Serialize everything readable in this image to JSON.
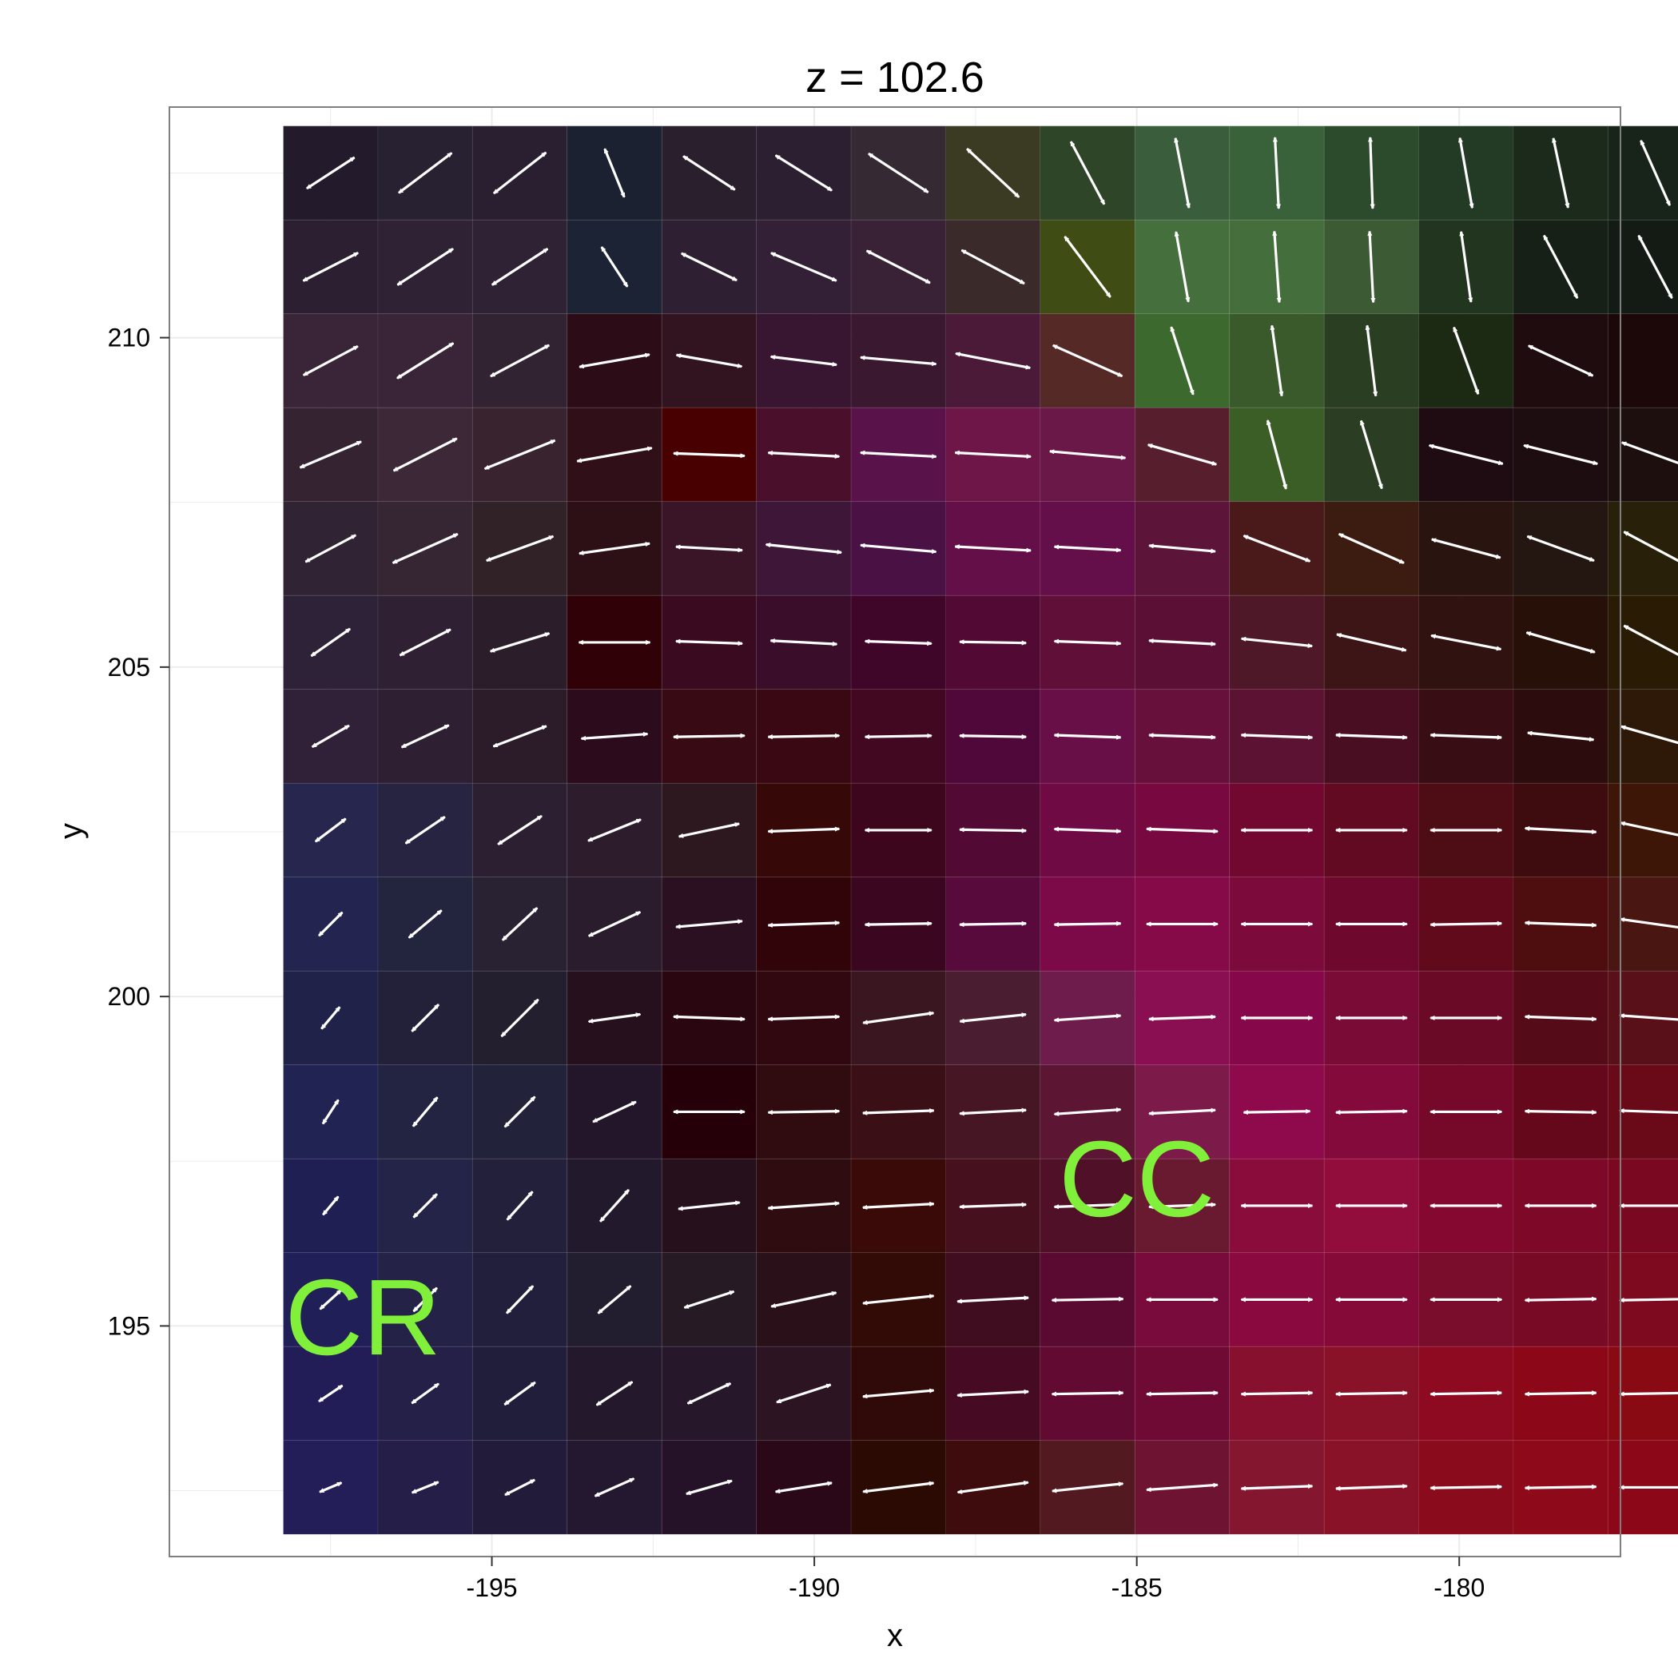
{
  "chart_data": {
    "type": "heatmap",
    "title": "z = 102.6",
    "xlabel": "x",
    "ylabel": "y",
    "xlim": [
      -200,
      -177.5
    ],
    "ylim": [
      191.5,
      213.5
    ],
    "x_ticks": [
      -195,
      -190,
      -185,
      -180
    ],
    "y_ticks": [
      195,
      200,
      205,
      210
    ],
    "grid": true,
    "x": [
      -197.5,
      -196.13,
      -194.77,
      -193.4,
      -192.03,
      -190.67,
      -189.3,
      -187.93,
      -186.57,
      -185.2,
      -183.83,
      -182.47,
      -181.1,
      -179.73
    ],
    "y": [
      212.5,
      211.13,
      209.77,
      208.4,
      207.03,
      205.67,
      204.3,
      202.93,
      201.57,
      200.2,
      198.83,
      197.47,
      196.1,
      194.73,
      193.37
    ],
    "x_edges_extra": [
      -178.36
    ],
    "colors": [
      [
        "#231b2c",
        "#282131",
        "#2a1f31",
        "#1b2130",
        "#2a1f2d",
        "#2d1f32",
        "#352a34",
        "#3b3a22",
        "#2e4528",
        "#3a5e3b",
        "#3a623a",
        "#2c4a2c",
        "#233a24",
        "#1b2a1b",
        "#182419"
      ],
      [
        "#2c1f31",
        "#2e2234",
        "#2f2235",
        "#1c2334",
        "#2f1f33",
        "#331f36",
        "#3a2236",
        "#3b2a2a",
        "#3f4c13",
        "#456f3d",
        "#456e3d",
        "#3c5a33",
        "#22361f",
        "#172016",
        "#141b14"
      ],
      [
        "#3a2538",
        "#3a2538",
        "#312332",
        "#2c0c16",
        "#321421",
        "#381530",
        "#3a1830",
        "#4a1a38",
        "#552a26",
        "#3c6a2e",
        "#3a5a2c",
        "#2a3e22",
        "#1c2a14",
        "#1e0c0e",
        "#1c0808"
      ],
      [
        "#362331",
        "#3d2838",
        "#38232e",
        "#300f19",
        "#480000",
        "#4a0f2a",
        "#5a124a",
        "#6e1648",
        "#6a1848",
        "#571f2d",
        "#3b5e27",
        "#2b3d22",
        "#1f0c13",
        "#1d0c10",
        "#1e0f0f"
      ],
      [
        "#302333",
        "#362533",
        "#302227",
        "#2d0f16",
        "#3a1427",
        "#3d1638",
        "#4a1244",
        "#640f48",
        "#640f4a",
        "#5c1438",
        "#4a1a1a",
        "#3c1c10",
        "#2a1410",
        "#241610",
        "#282008"
      ],
      [
        "#2e2238",
        "#2f2133",
        "#2c1d2a",
        "#300208",
        "#3a0a20",
        "#3a0d2a",
        "#40062a",
        "#520a34",
        "#600f38",
        "#5c0f34",
        "#4e1828",
        "#3e1516",
        "#301210",
        "#261008",
        "#2a1c04"
      ],
      [
        "#302038",
        "#2e1f32",
        "#2c1c2a",
        "#2c0c1c",
        "#380a14",
        "#3a0812",
        "#420822",
        "#50083a",
        "#680f48",
        "#68103c",
        "#5c1232",
        "#4a0e22",
        "#380e14",
        "#2c0c0c",
        "#2e1808"
      ],
      [
        "#26264e",
        "#262440",
        "#2c1f32",
        "#2c1c2c",
        "#2e1820",
        "#360808",
        "#3e061c",
        "#520a34",
        "#700a44",
        "#780840",
        "#720830",
        "#620a22",
        "#4e0c14",
        "#3e0c0e",
        "#3e1608"
      ],
      [
        "#232450",
        "#23243e",
        "#282232",
        "#2a1c2c",
        "#2a1020",
        "#300408",
        "#3a0620",
        "#580a3c",
        "#7c0a48",
        "#860a48",
        "#7c0a3a",
        "#6e082c",
        "#600a1c",
        "#4e0e10",
        "#4a1612"
      ],
      [
        "#21224a",
        "#23203a",
        "#231f2e",
        "#26101e",
        "#2a0610",
        "#320810",
        "#3a1620",
        "#4a1e30",
        "#6e1c4c",
        "#8a0e52",
        "#86084a",
        "#7a0a36",
        "#6a0a26",
        "#560c18",
        "#5a1018"
      ],
      [
        "#212452",
        "#232442",
        "#22233a",
        "#24162a",
        "#260008",
        "#300c10",
        "#3a1016",
        "#461624",
        "#5c1634",
        "#7c1a4a",
        "#8e0a4c",
        "#850a3c",
        "#76082a",
        "#66081c",
        "#6a0a18"
      ],
      [
        "#201f54",
        "#242448",
        "#22203a",
        "#22192c",
        "#26101c",
        "#2e0c10",
        "#3a0a08",
        "#46101e",
        "#501028",
        "#6a1a30",
        "#8a0c3a",
        "#920c3c",
        "#840830",
        "#7e0828",
        "#7a0820"
      ],
      [
        "#211f58",
        "#252248",
        "#221f3c",
        "#221e30",
        "#261a24",
        "#2a1018",
        "#320a06",
        "#400c20",
        "#5a0a30",
        "#780a3c",
        "#8a0a40",
        "#860a38",
        "#7a0c2c",
        "#780a26",
        "#7e0a20"
      ],
      [
        "#221d56",
        "#242048",
        "#211e3c",
        "#24192c",
        "#26172a",
        "#2c1422",
        "#300a08",
        "#460a22",
        "#620a32",
        "#6e0a34",
        "#86102e",
        "#8a1228",
        "#8e0a20",
        "#8c0818",
        "#8a0a14"
      ],
      [
        "#231d58",
        "#241e48",
        "#221c3a",
        "#241830",
        "#261228",
        "#2a0818",
        "#2c0a04",
        "#3e0c0c",
        "#521a20",
        "#6e1432",
        "#841630",
        "#8a1228",
        "#8a0c1c",
        "#8e0a1a",
        "#8c0818"
      ]
    ],
    "arrow_angles_deg": [
      [
        33,
        37,
        38,
        112,
        -33,
        -32,
        -33,
        -43,
        -62,
        -79,
        -87,
        -88,
        -80,
        -78,
        -66
      ],
      [
        27,
        33,
        33,
        -57,
        -26,
        -23,
        -27,
        -28,
        -53,
        -80,
        -86,
        -87,
        -82,
        -62,
        -62
      ],
      [
        28,
        32,
        28,
        10,
        -10,
        -7,
        -5,
        -11,
        -24,
        -72,
        -82,
        -83,
        -70,
        -25,
        0
      ],
      [
        23,
        27,
        22,
        10,
        -2,
        -3,
        -3,
        -3,
        -5,
        -16,
        -75,
        -73,
        -14,
        -14,
        -20
      ],
      [
        28,
        24,
        20,
        8,
        -3,
        -6,
        -5,
        -3,
        -3,
        -5,
        -21,
        -24,
        -15,
        -20,
        -28
      ],
      [
        35,
        27,
        17,
        0,
        -2,
        -3,
        -2,
        -1,
        -2,
        -3,
        -6,
        -13,
        -11,
        -16,
        -28
      ],
      [
        30,
        25,
        21,
        4,
        1,
        1,
        1,
        -1,
        -2,
        -2,
        -2,
        -2,
        -2,
        -6,
        -16
      ],
      [
        37,
        34,
        33,
        22,
        12,
        2,
        0,
        -1,
        -2,
        -2,
        0,
        0,
        0,
        -3,
        -12
      ],
      [
        45,
        40,
        43,
        25,
        5,
        2,
        1,
        1,
        1,
        0,
        0,
        0,
        1,
        -2,
        -8
      ],
      [
        50,
        45,
        45,
        8,
        -2,
        2,
        8,
        6,
        4,
        2,
        0,
        0,
        0,
        -2,
        -4
      ],
      [
        57,
        50,
        45,
        25,
        0,
        1,
        2,
        3,
        4,
        3,
        1,
        1,
        0,
        -1,
        -2
      ],
      [
        50,
        45,
        48,
        48,
        6,
        4,
        3,
        2,
        2,
        2,
        0,
        0,
        0,
        0,
        0
      ],
      [
        42,
        45,
        46,
        40,
        18,
        12,
        6,
        3,
        1,
        0,
        0,
        0,
        0,
        1,
        1
      ],
      [
        34,
        36,
        36,
        33,
        25,
        18,
        5,
        3,
        1,
        1,
        1,
        1,
        1,
        1,
        1
      ],
      [
        23,
        22,
        27,
        24,
        16,
        9,
        7,
        8,
        6,
        4,
        2,
        2,
        1,
        1,
        0
      ]
    ],
    "arrow_lengths": [
      [
        0.6,
        0.7,
        0.7,
        0.55,
        0.65,
        0.7,
        0.75,
        0.75,
        0.75,
        0.75,
        0.75,
        0.75,
        0.75,
        0.75,
        0.75
      ],
      [
        0.65,
        0.7,
        0.7,
        0.5,
        0.65,
        0.75,
        0.75,
        0.75,
        0.8,
        0.75,
        0.75,
        0.75,
        0.75,
        0.75,
        0.75
      ],
      [
        0.65,
        0.7,
        0.7,
        0.75,
        0.7,
        0.7,
        0.8,
        0.8,
        0.8,
        0.75,
        0.75,
        0.75,
        0.75,
        0.75,
        0.0
      ],
      [
        0.7,
        0.75,
        0.8,
        0.8,
        0.75,
        0.75,
        0.8,
        0.8,
        0.8,
        0.75,
        0.75,
        0.75,
        0.8,
        0.8,
        0.75
      ],
      [
        0.6,
        0.75,
        0.75,
        0.75,
        0.7,
        0.8,
        0.8,
        0.8,
        0.7,
        0.7,
        0.75,
        0.75,
        0.75,
        0.75,
        0.75
      ],
      [
        0.5,
        0.6,
        0.65,
        0.75,
        0.7,
        0.7,
        0.7,
        0.7,
        0.7,
        0.7,
        0.75,
        0.75,
        0.75,
        0.75,
        0.75
      ],
      [
        0.45,
        0.55,
        0.6,
        0.7,
        0.75,
        0.75,
        0.7,
        0.7,
        0.7,
        0.7,
        0.75,
        0.75,
        0.75,
        0.7,
        0.75
      ],
      [
        0.4,
        0.5,
        0.55,
        0.6,
        0.65,
        0.75,
        0.7,
        0.7,
        0.7,
        0.75,
        0.75,
        0.75,
        0.75,
        0.75,
        0.75
      ],
      [
        0.35,
        0.45,
        0.5,
        0.6,
        0.7,
        0.75,
        0.7,
        0.7,
        0.7,
        0.75,
        0.75,
        0.75,
        0.75,
        0.75,
        0.75
      ],
      [
        0.3,
        0.4,
        0.55,
        0.55,
        0.75,
        0.75,
        0.75,
        0.7,
        0.7,
        0.7,
        0.75,
        0.75,
        0.75,
        0.75,
        0.75
      ],
      [
        0.3,
        0.4,
        0.45,
        0.5,
        0.75,
        0.75,
        0.75,
        0.7,
        0.7,
        0.7,
        0.7,
        0.75,
        0.75,
        0.75,
        0.75
      ],
      [
        0.25,
        0.35,
        0.4,
        0.45,
        0.65,
        0.75,
        0.75,
        0.7,
        0.7,
        0.7,
        0.75,
        0.75,
        0.75,
        0.75,
        0.75
      ],
      [
        0.3,
        0.35,
        0.4,
        0.45,
        0.55,
        0.7,
        0.75,
        0.75,
        0.75,
        0.75,
        0.75,
        0.75,
        0.75,
        0.75,
        0.75
      ],
      [
        0.3,
        0.35,
        0.4,
        0.45,
        0.5,
        0.6,
        0.75,
        0.75,
        0.75,
        0.75,
        0.75,
        0.75,
        0.75,
        0.75,
        0.75
      ],
      [
        0.25,
        0.3,
        0.35,
        0.45,
        0.5,
        0.6,
        0.75,
        0.75,
        0.75,
        0.75,
        0.75,
        0.75,
        0.75,
        0.75,
        0.75
      ]
    ],
    "annotations": [
      {
        "text": "CC",
        "x": -185.0,
        "y": 197.1,
        "color": "#80f03a"
      },
      {
        "text": "CR",
        "x": -197.0,
        "y": 195.0,
        "color": "#80f03a"
      }
    ]
  },
  "colors": {
    "panel_background": "#ffffff",
    "grid": "#ebebeb",
    "panel_border": "#7f7f7f",
    "arrow": "#ffffff",
    "annotation": "#80f03a"
  }
}
